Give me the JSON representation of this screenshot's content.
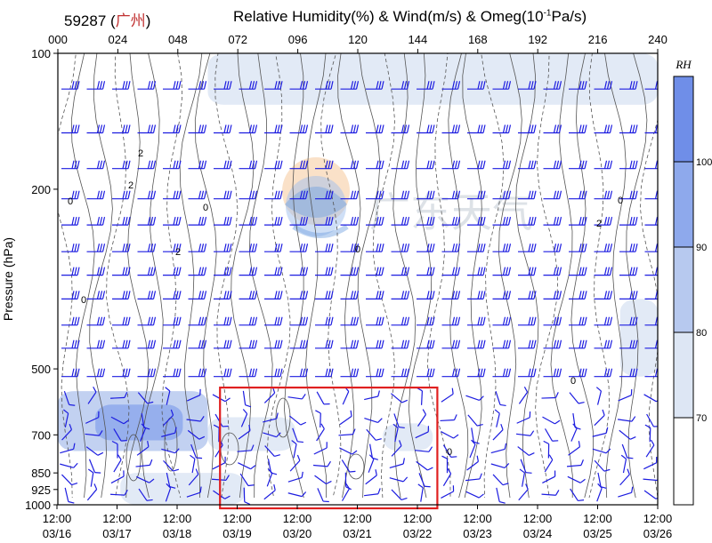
{
  "station": {
    "id": "59287",
    "name": "广州"
  },
  "title": {
    "prefix": "Relative Humidity(%) & Wind(m/s) & Omeg(10",
    "sup": "-1",
    "suffix": "Pa/s)"
  },
  "watermark": {
    "text": "广东天气"
  },
  "chart_data": {
    "type": "heatmap",
    "title": "Relative Humidity(%) & Wind(m/s) & Omeg(10-1Pa/s)",
    "ylabel": "Pressure (hPa)",
    "xlabel": "",
    "top_axis": {
      "ticks": [
        "000",
        "024",
        "048",
        "072",
        "096",
        "120",
        "144",
        "168",
        "192",
        "216",
        "240"
      ]
    },
    "bottom_axis": {
      "ticks": [
        {
          "time": "12:00",
          "date": "03/16"
        },
        {
          "time": "12:00",
          "date": "03/17"
        },
        {
          "time": "12:00",
          "date": "03/18"
        },
        {
          "time": "12:00",
          "date": "03/19"
        },
        {
          "time": "12:00",
          "date": "03/20"
        },
        {
          "time": "12:00",
          "date": "03/21"
        },
        {
          "time": "12:00",
          "date": "03/22"
        },
        {
          "time": "12:00",
          "date": "03/23"
        },
        {
          "time": "12:00",
          "date": "03/24"
        },
        {
          "time": "12:00",
          "date": "03/25"
        },
        {
          "time": "12:00",
          "date": "03/26"
        }
      ]
    },
    "y_scale": "log",
    "y_ticks": [
      "100",
      "200",
      "500",
      "700",
      "850",
      "925",
      "1000"
    ],
    "ylim": [
      1000,
      100
    ],
    "colorbar": {
      "label": "RH",
      "levels": [
        "70",
        "80",
        "90",
        "100"
      ],
      "colors": [
        "#ffffff",
        "#dde6f4",
        "#b7c9ef",
        "#8ea9ec",
        "#6f8ee8"
      ]
    },
    "contour_labels": [
      "0",
      "2",
      "2",
      "2",
      "0",
      "0",
      "2",
      "0",
      "0",
      "0",
      "0"
    ],
    "highlight_box": {
      "from_day": "03/19",
      "to_day": "03/22",
      "top_level": 550,
      "bottom_level": 1000,
      "color": "#e02020"
    },
    "humidity_patches": [
      {
        "x0": 0,
        "x1": 60,
        "p_top": 560,
        "p_bot": 760,
        "level": 2
      },
      {
        "x0": 15,
        "x1": 50,
        "p_top": 600,
        "p_bot": 720,
        "level": 3
      },
      {
        "x0": 60,
        "x1": 95,
        "p_top": 640,
        "p_bot": 760,
        "level": 1
      },
      {
        "x0": 25,
        "x1": 75,
        "p_top": 850,
        "p_bot": 1000,
        "level": 1
      },
      {
        "x0": 130,
        "x1": 150,
        "p_top": 660,
        "p_bot": 760,
        "level": 1
      },
      {
        "x0": 225,
        "x1": 240,
        "p_top": 350,
        "p_bot": 520,
        "level": 1
      },
      {
        "x0": 60,
        "x1": 240,
        "p_top": 100,
        "p_bot": 130,
        "level": 1
      }
    ]
  }
}
